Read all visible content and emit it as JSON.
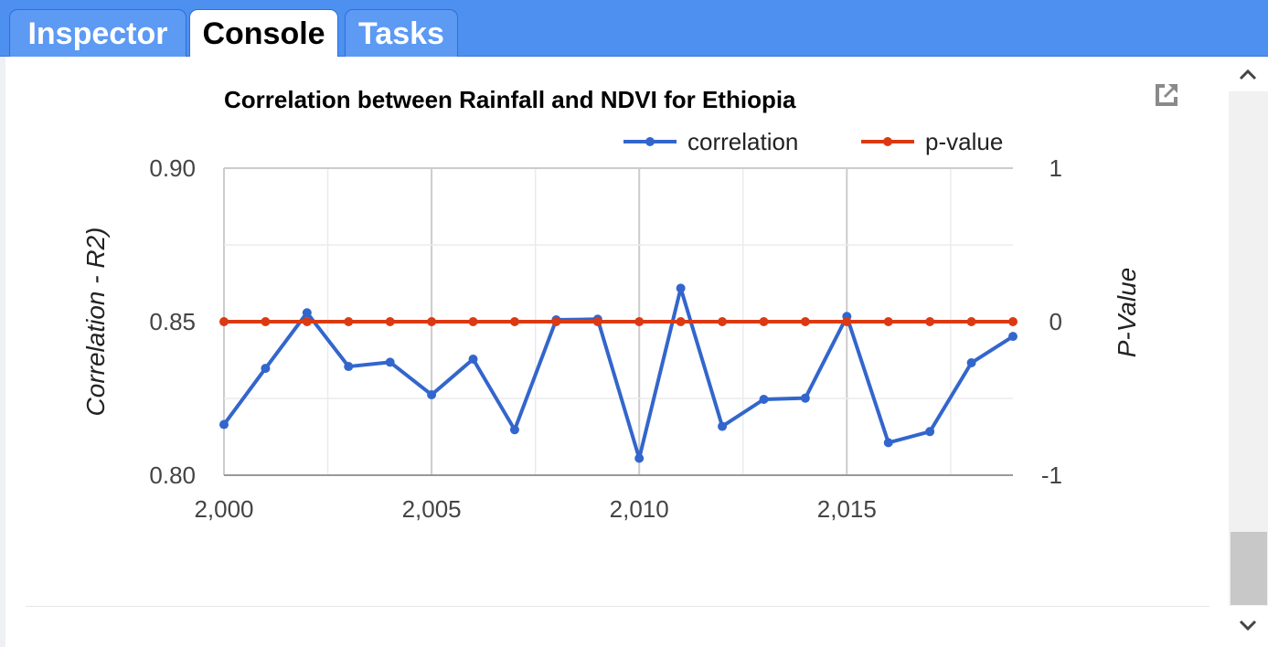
{
  "tabs": [
    {
      "label": "Inspector",
      "active": false
    },
    {
      "label": "Console",
      "active": true
    },
    {
      "label": "Tasks",
      "active": false
    }
  ],
  "icons": {
    "popout": "open-in-new-icon",
    "scroll_up": "chevron-up-icon",
    "scroll_down": "chevron-down-icon"
  },
  "colors": {
    "tab_bar": "#4d90f0",
    "correlation": "#3366cc",
    "p_value": "#dc3912"
  },
  "chart_data": {
    "type": "line",
    "title": "Correlation between Rainfall and NDVI for Ethiopia",
    "x": [
      2000,
      2001,
      2002,
      2003,
      2004,
      2005,
      2006,
      2007,
      2008,
      2009,
      2010,
      2011,
      2012,
      2013,
      2014,
      2015,
      2016,
      2017,
      2018,
      2019
    ],
    "x_ticks": [
      2000,
      2005,
      2010,
      2015
    ],
    "x_tick_labels": [
      "2,000",
      "2,005",
      "2,010",
      "2,015"
    ],
    "xlim": [
      2000,
      2019
    ],
    "series": [
      {
        "name": "correlation",
        "axis": "left",
        "color": "#3366cc",
        "values": [
          0.8165,
          0.8348,
          0.8529,
          0.8354,
          0.8368,
          0.8262,
          0.8378,
          0.8148,
          0.8506,
          0.8508,
          0.8055,
          0.8609,
          0.8159,
          0.8247,
          0.8251,
          0.8517,
          0.8106,
          0.8142,
          0.8366,
          0.8452
        ]
      },
      {
        "name": "p-value",
        "axis": "right",
        "color": "#dc3912",
        "values": [
          0,
          0,
          0,
          0,
          0,
          0,
          0,
          0,
          0,
          0,
          0,
          0,
          0,
          0,
          0,
          0,
          0,
          0,
          0,
          0
        ]
      }
    ],
    "y_left": {
      "label": "Correlation - R2)",
      "ylim": [
        0.8,
        0.9
      ],
      "ticks": [
        0.8,
        0.85,
        0.9
      ],
      "tick_labels": [
        "0.80",
        "0.85",
        "0.90"
      ]
    },
    "y_right": {
      "label": "P-Value",
      "ylim": [
        -1,
        1
      ],
      "ticks": [
        -1,
        0,
        1
      ],
      "tick_labels": [
        "-1",
        "0",
        "1"
      ]
    },
    "grid": true,
    "legend": "top-right"
  }
}
